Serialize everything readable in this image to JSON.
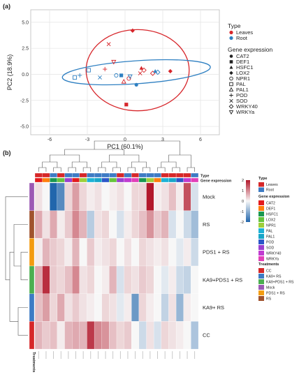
{
  "panel_labels": {
    "a": "(a)",
    "b": "(b)"
  },
  "chart_data": [
    {
      "type": "scatter",
      "panel": "(a)",
      "xlabel": "PC1 (60.1%)",
      "ylabel": "PC2 (18.9%)",
      "xlim": [
        -7.5,
        7.5
      ],
      "ylim": [
        -5.8,
        6.2
      ],
      "xticks": [
        -6,
        -3,
        0,
        3,
        6
      ],
      "yticks": [
        -5.0,
        -2.5,
        0.0,
        2.5,
        5.0
      ],
      "grid": true,
      "legend_position": "right",
      "type_legend": {
        "title": "Type",
        "items": [
          {
            "name": "Leaves",
            "color": "#d7262b"
          },
          {
            "name": "Root",
            "color": "#2f80c2"
          }
        ]
      },
      "gene_legend": {
        "title": "Gene expression",
        "items": [
          {
            "name": "CAT2",
            "marker": "circle-filled"
          },
          {
            "name": "DEF1",
            "marker": "square-filled"
          },
          {
            "name": "HSFC1",
            "marker": "triangle-filled"
          },
          {
            "name": "LOX2",
            "marker": "diamond-filled"
          },
          {
            "name": "NPR1",
            "marker": "circle-open"
          },
          {
            "name": "PAL",
            "marker": "square-open"
          },
          {
            "name": "PAL1",
            "marker": "triangle-open"
          },
          {
            "name": "POD",
            "marker": "plus"
          },
          {
            "name": "SOD",
            "marker": "cross"
          },
          {
            "name": "WRKY40",
            "marker": "diamond-open"
          },
          {
            "name": "WRKYa",
            "marker": "triangle-down-open"
          }
        ]
      },
      "ellipses": [
        {
          "group": "Leaves",
          "color": "#d7262b",
          "center": [
            1.0,
            0.4
          ],
          "semi_axes": [
            4.1,
            3.9
          ],
          "angle_deg": 0
        },
        {
          "group": "Root",
          "color": "#2f80c2",
          "center": [
            0.9,
            0.2
          ],
          "semi_axes": [
            5.9,
            1.1
          ],
          "angle_deg": 4
        }
      ],
      "points": [
        {
          "gene": "LOX2",
          "type": "Leaves",
          "x": 0.6,
          "y": 4.2
        },
        {
          "gene": "SOD",
          "type": "Leaves",
          "x": -1.3,
          "y": 2.9
        },
        {
          "gene": "WRKYa",
          "type": "Leaves",
          "x": -0.9,
          "y": 1.2
        },
        {
          "gene": "POD",
          "type": "Leaves",
          "x": -1.6,
          "y": 0.5
        },
        {
          "gene": "HSFC1",
          "type": "Leaves",
          "x": 1.3,
          "y": 0.6
        },
        {
          "gene": "WRKY40",
          "type": "Leaves",
          "x": 1.5,
          "y": 0.4
        },
        {
          "gene": "SOD",
          "type": "Leaves",
          "x": 1.2,
          "y": 0.1
        },
        {
          "gene": "WRKY40",
          "type": "Leaves",
          "x": 2.2,
          "y": 0.1
        },
        {
          "gene": "PAL1",
          "type": "Leaves",
          "x": -0.1,
          "y": -0.7
        },
        {
          "gene": "NPR1",
          "type": "Leaves",
          "x": 0.3,
          "y": -0.4
        },
        {
          "gene": "DEF1",
          "type": "Leaves",
          "x": 0.1,
          "y": -2.9
        },
        {
          "gene": "LOX2",
          "type": "Leaves",
          "x": 3.6,
          "y": 0.3
        },
        {
          "gene": "PAL",
          "type": "Root",
          "x": -4.0,
          "y": -0.3
        },
        {
          "gene": "PAL",
          "type": "Root",
          "x": -2.9,
          "y": 0.4
        },
        {
          "gene": "SOD",
          "type": "Root",
          "x": -2.0,
          "y": -0.3
        },
        {
          "gene": "NPR1",
          "type": "Root",
          "x": -0.7,
          "y": -0.1
        },
        {
          "gene": "DEF1",
          "type": "Root",
          "x": -0.3,
          "y": -0.1
        },
        {
          "gene": "WRKYa",
          "type": "Root",
          "x": 0.4,
          "y": -0.2
        },
        {
          "gene": "CAT2",
          "type": "Root",
          "x": 0.9,
          "y": -1.0
        },
        {
          "gene": "HSFC1",
          "type": "Root",
          "x": 2.4,
          "y": 0.3
        },
        {
          "gene": "WRKY40",
          "type": "Root",
          "x": 2.6,
          "y": 0.2
        },
        {
          "gene": "POD",
          "type": "Root",
          "x": -3.6,
          "y": -0.1
        }
      ]
    },
    {
      "type": "heatmap",
      "panel": "(b)",
      "row_labels": [
        "Mock",
        "RS",
        "PDS1 + RS",
        "KA9+PDS1 + RS",
        "KA9+ RS",
        "CC"
      ],
      "row_treatment_colors": [
        "#9c59b4",
        "#a0522d",
        "#f39c12",
        "#4caf50",
        "#3d7bc4",
        "#d62728"
      ],
      "column_types": [
        "Leaves",
        "Leaves",
        "Root",
        "Leaves",
        "Root",
        "Root",
        "Leaves",
        "Root",
        "Root",
        "Root",
        "Root",
        "Leaves",
        "Root",
        "Leaves",
        "Root",
        "Root",
        "Root",
        "Leaves",
        "Leaves",
        "Leaves",
        "Leaves",
        "Root"
      ],
      "column_genes": [
        "CAT2",
        "DEF1",
        "HSFC1",
        "LOX2",
        "SOD",
        "CAT2",
        "NPR1",
        "PAL",
        "PAL1",
        "POD",
        "LOX2",
        "SOD",
        "WRKY40",
        "WRKYa",
        "HSFC1",
        "NPR1",
        "DEF1",
        "PAL",
        "PAL1",
        "POD",
        "WRKY40",
        "WRKYa"
      ],
      "column_tick_labels": [
        "",
        "",
        "",
        "",
        "",
        "",
        "",
        "",
        "",
        "",
        "",
        "",
        "",
        "",
        "",
        "",
        "",
        "",
        "",
        "",
        "",
        ""
      ],
      "values": [
        [
          0.2,
          0.0,
          -2.3,
          -1.5,
          0.3,
          0.8,
          0.3,
          0.1,
          0.2,
          0.0,
          0.1,
          0.2,
          0.0,
          0.3,
          0.3,
          2.3,
          0.1,
          0.2,
          0.5,
          0.1,
          1.5,
          -0.3
        ],
        [
          0.7,
          0.2,
          0.7,
          0.1,
          0.4,
          1.0,
          0.6,
          -0.6,
          0.2,
          0.3,
          0.0,
          -0.3,
          0.1,
          0.3,
          0.5,
          0.9,
          0.4,
          0.6,
          -0.3,
          0.0,
          -0.4,
          -0.8
        ],
        [
          0.1,
          0.6,
          0.4,
          0.3,
          0.1,
          0.6,
          0.0,
          0.4,
          0.1,
          0.2,
          0.3,
          0.0,
          0.2,
          0.0,
          0.3,
          0.2,
          0.1,
          0.2,
          0.0,
          -0.2,
          0.1,
          -0.4
        ],
        [
          0.7,
          1.8,
          0.4,
          0.3,
          0.5,
          1.0,
          0.2,
          0.3,
          0.0,
          0.1,
          0.6,
          -0.3,
          0.3,
          0.2,
          0.4,
          0.3,
          0.0,
          -0.2,
          0.1,
          -0.4,
          -0.5,
          0.0
        ],
        [
          0.5,
          0.8,
          0.3,
          0.7,
          0.2,
          0.4,
          0.2,
          0.1,
          0.0,
          0.3,
          0.2,
          -0.2,
          0.1,
          -1.3,
          0.3,
          0.1,
          0.0,
          -0.5,
          0.2,
          -0.9,
          0.1,
          0.0
        ],
        [
          0.6,
          0.4,
          0.5,
          0.1,
          0.6,
          0.7,
          0.6,
          1.7,
          1.0,
          0.9,
          0.5,
          0.3,
          0.4,
          0.0,
          -0.4,
          0.2,
          -0.3,
          0.3,
          0.2,
          0.1,
          0.0,
          -0.7
        ]
      ],
      "color_scale": {
        "min": -2,
        "max": 2,
        "ticks": [
          2,
          1,
          0,
          -1,
          -2
        ],
        "low": "#2166ac",
        "mid": "#f7f7f7",
        "high": "#b2182b"
      },
      "annotation_labels": {
        "type_row": "Type",
        "gene_row": "Gene expression",
        "treatment_column": "Treatments"
      },
      "legends": {
        "type": {
          "title": "Type",
          "items": [
            {
              "name": "Leaves",
              "color": "#d62728"
            },
            {
              "name": "Root",
              "color": "#3d7bc4"
            }
          ]
        },
        "gene": {
          "title": "Gene expression",
          "items": [
            {
              "name": "CAT2",
              "color": "#e31a1c"
            },
            {
              "name": "DEF1",
              "color": "#ff7f0e"
            },
            {
              "name": "HSFC1",
              "color": "#1a9850"
            },
            {
              "name": "LOX2",
              "color": "#66c43b"
            },
            {
              "name": "NPR1",
              "color": "#9ecf3a"
            },
            {
              "name": "PAL",
              "color": "#1db2d6"
            },
            {
              "name": "PAL1",
              "color": "#17a6c8"
            },
            {
              "name": "POD",
              "color": "#2c56c9"
            },
            {
              "name": "SOD",
              "color": "#9b3fcf"
            },
            {
              "name": "WRKY40",
              "color": "#c13bd0"
            },
            {
              "name": "WRKYa",
              "color": "#e23fb8"
            }
          ]
        },
        "treatments": {
          "title": "Treatments",
          "items": [
            {
              "name": "CC",
              "color": "#d62728"
            },
            {
              "name": "KA9+ RS",
              "color": "#3d7bc4"
            },
            {
              "name": "KA9+PDS1 + RS",
              "color": "#4caf50"
            },
            {
              "name": "Mock",
              "color": "#9c59b4"
            },
            {
              "name": "PDS1 + RS",
              "color": "#f39c12"
            },
            {
              "name": "RS",
              "color": "#a0522d"
            }
          ]
        }
      }
    }
  ]
}
